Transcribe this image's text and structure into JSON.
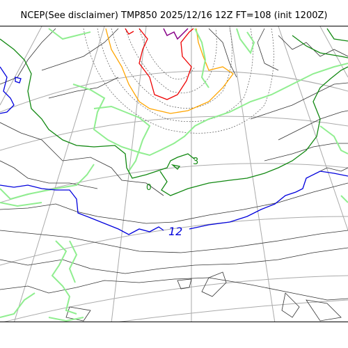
{
  "title": "NCEP(See disclaimer) TMP850 2025/12/16 12Z FT=108 (init 1200Z)",
  "contour_labels": [
    {
      "text": "12",
      "color": "#0000dd"
    },
    {
      "text": "3",
      "color": "#118811"
    },
    {
      "text": "0",
      "color": "#118811"
    }
  ],
  "colors": {
    "coast": "#333333",
    "graticule": "#aaaaaa",
    "blue_contour": "#0000dd",
    "green_contour": "#118811",
    "lightgreen_contour": "#90ee90",
    "orange_contour": "#ffa500",
    "red_contour": "#ee0000",
    "purple_contour": "#880088",
    "gray_dotted": "#555555"
  }
}
